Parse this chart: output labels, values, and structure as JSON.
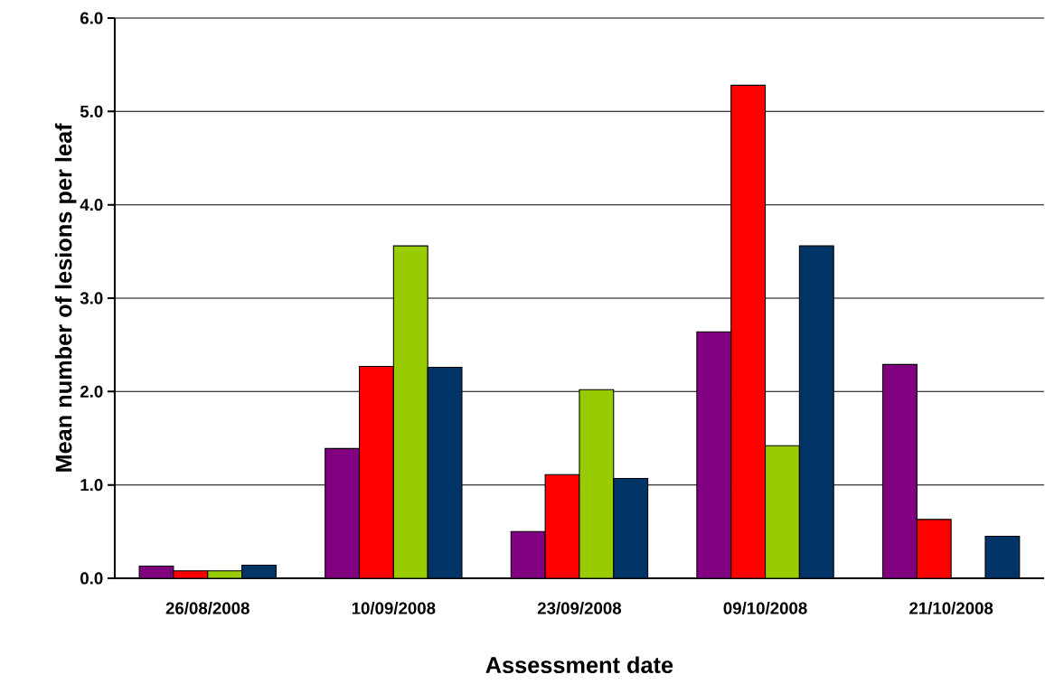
{
  "chart_data": {
    "type": "bar",
    "xlabel": "Assessment date",
    "ylabel": "Mean number of lesions per leaf",
    "categories": [
      "26/08/2008",
      "10/09/2008",
      "23/09/2008",
      "09/10/2008",
      "21/10/2008"
    ],
    "series": [
      {
        "color": "#800080",
        "values": [
          0.13,
          1.39,
          0.5,
          2.64,
          2.29
        ]
      },
      {
        "color": "#ff0000",
        "values": [
          0.08,
          2.27,
          1.11,
          5.28,
          0.63
        ]
      },
      {
        "color": "#99cc00",
        "values": [
          0.08,
          3.56,
          2.02,
          1.42,
          null
        ]
      },
      {
        "color": "#003366",
        "values": [
          0.14,
          2.26,
          1.07,
          3.56,
          0.45
        ]
      }
    ],
    "ylim": [
      0,
      6
    ],
    "yticks": [
      {
        "value": 0,
        "label": "0.0"
      },
      {
        "value": 1,
        "label": "1.0"
      },
      {
        "value": 2,
        "label": "2.0"
      },
      {
        "value": 3,
        "label": "3.0"
      },
      {
        "value": 4,
        "label": "4.0"
      },
      {
        "value": 5,
        "label": "5.0"
      },
      {
        "value": 6,
        "label": "6.0"
      }
    ],
    "grid": "y"
  }
}
